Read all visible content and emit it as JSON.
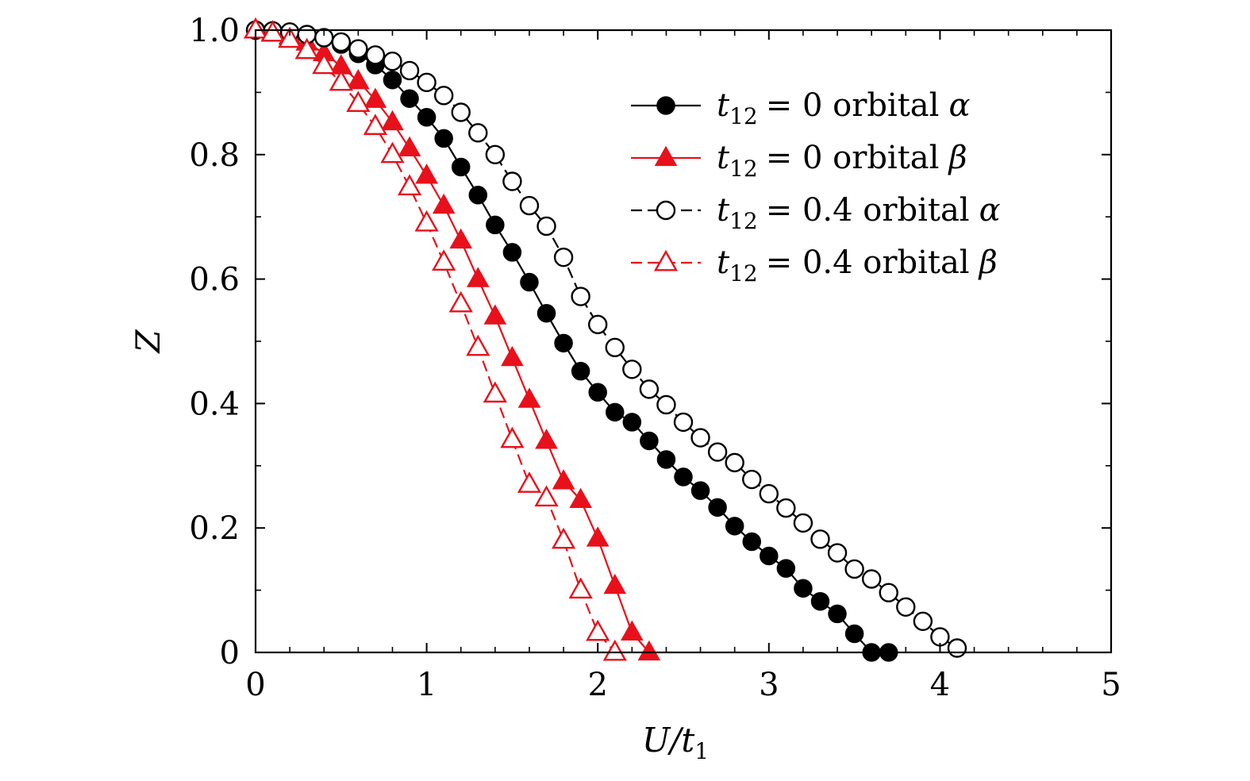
{
  "chart_data": {
    "type": "line",
    "title": "",
    "xlabel": "U/t",
    "xlabel_sub": "1",
    "ylabel": "Z",
    "xlim": [
      0,
      5
    ],
    "ylim": [
      0,
      1.0
    ],
    "xticks": [
      0,
      1,
      2,
      3,
      4,
      5
    ],
    "xtick_labels": [
      "0",
      "1",
      "2",
      "3",
      "4",
      "5"
    ],
    "yticks": [
      0,
      0.2,
      0.4,
      0.6,
      0.8,
      1.0
    ],
    "ytick_labels": [
      "0",
      "0.2",
      "0.4",
      "0.6",
      "0.8",
      "1.0"
    ],
    "grid": false,
    "legend_position": "top-right",
    "series": [
      {
        "name": "t12 = 0 orbital α",
        "legend": {
          "t": "t",
          "sub": "12",
          "eq": "= 0 orbital",
          "greek": "α"
        },
        "color": "#000000",
        "marker": "circle",
        "filled": true,
        "dash": "solid",
        "x": [
          0,
          0.1,
          0.2,
          0.3,
          0.4,
          0.5,
          0.6,
          0.7,
          0.8,
          0.9,
          1.0,
          1.1,
          1.2,
          1.3,
          1.4,
          1.5,
          1.6,
          1.7,
          1.8,
          1.9,
          2.0,
          2.1,
          2.2,
          2.3,
          2.4,
          2.5,
          2.6,
          2.7,
          2.8,
          2.9,
          3.0,
          3.1,
          3.2,
          3.3,
          3.4,
          3.5,
          3.6,
          3.7
        ],
        "y": [
          1.0,
          0.999,
          0.997,
          0.993,
          0.987,
          0.977,
          0.962,
          0.944,
          0.92,
          0.89,
          0.86,
          0.826,
          0.78,
          0.735,
          0.687,
          0.643,
          0.595,
          0.545,
          0.497,
          0.452,
          0.418,
          0.386,
          0.37,
          0.34,
          0.31,
          0.282,
          0.26,
          0.233,
          0.203,
          0.178,
          0.155,
          0.135,
          0.103,
          0.082,
          0.062,
          0.03,
          0.0,
          0.0
        ]
      },
      {
        "name": "t12 = 0 orbital β",
        "legend": {
          "t": "t",
          "sub": "12",
          "eq": "= 0 orbital",
          "greek": "β"
        },
        "color": "#e8111b",
        "marker": "triangle",
        "filled": true,
        "dash": "solid",
        "x": [
          0,
          0.1,
          0.2,
          0.3,
          0.4,
          0.5,
          0.6,
          0.7,
          0.8,
          0.9,
          1.0,
          1.1,
          1.2,
          1.3,
          1.4,
          1.5,
          1.6,
          1.7,
          1.8,
          1.9,
          2.0,
          2.1,
          2.2,
          2.3
        ],
        "y": [
          1.0,
          0.997,
          0.99,
          0.98,
          0.963,
          0.942,
          0.918,
          0.888,
          0.852,
          0.81,
          0.766,
          0.718,
          0.662,
          0.6,
          0.54,
          0.473,
          0.406,
          0.34,
          0.275,
          0.245,
          0.183,
          0.107,
          0.032,
          0.0
        ]
      },
      {
        "name": "t12 = 0.4 orbital α",
        "legend": {
          "t": "t",
          "sub": "12",
          "eq": "= 0.4 orbital",
          "greek": "α"
        },
        "color": "#000000",
        "marker": "circle",
        "filled": false,
        "dash": "dashed",
        "x": [
          0,
          0.1,
          0.2,
          0.3,
          0.4,
          0.5,
          0.6,
          0.7,
          0.8,
          0.9,
          1.0,
          1.1,
          1.2,
          1.3,
          1.4,
          1.5,
          1.6,
          1.7,
          1.8,
          1.9,
          2.0,
          2.1,
          2.2,
          2.3,
          2.4,
          2.5,
          2.6,
          2.7,
          2.8,
          2.9,
          3.0,
          3.1,
          3.2,
          3.3,
          3.4,
          3.5,
          3.6,
          3.7,
          3.8,
          3.9,
          4.0,
          4.1
        ],
        "y": [
          1.0,
          0.999,
          0.997,
          0.993,
          0.988,
          0.981,
          0.97,
          0.96,
          0.95,
          0.935,
          0.916,
          0.895,
          0.868,
          0.835,
          0.8,
          0.757,
          0.718,
          0.685,
          0.635,
          0.572,
          0.527,
          0.49,
          0.455,
          0.423,
          0.398,
          0.37,
          0.345,
          0.322,
          0.305,
          0.278,
          0.255,
          0.232,
          0.208,
          0.182,
          0.16,
          0.134,
          0.118,
          0.096,
          0.073,
          0.05,
          0.025,
          0.007
        ]
      },
      {
        "name": "t12 = 0.4 orbital β",
        "legend": {
          "t": "t",
          "sub": "12",
          "eq": "= 0.4 orbital",
          "greek": "β"
        },
        "color": "#e8111b",
        "marker": "triangle",
        "filled": false,
        "dash": "dashed",
        "x": [
          0,
          0.1,
          0.2,
          0.3,
          0.4,
          0.5,
          0.6,
          0.7,
          0.8,
          0.9,
          1.0,
          1.1,
          1.2,
          1.3,
          1.4,
          1.5,
          1.6,
          1.7,
          1.8,
          1.9,
          2.0,
          2.1
        ],
        "y": [
          1.0,
          0.995,
          0.985,
          0.967,
          0.943,
          0.916,
          0.882,
          0.845,
          0.8,
          0.748,
          0.69,
          0.627,
          0.56,
          0.49,
          0.415,
          0.342,
          0.27,
          0.248,
          0.18,
          0.1,
          0.032,
          0.0
        ]
      }
    ]
  }
}
